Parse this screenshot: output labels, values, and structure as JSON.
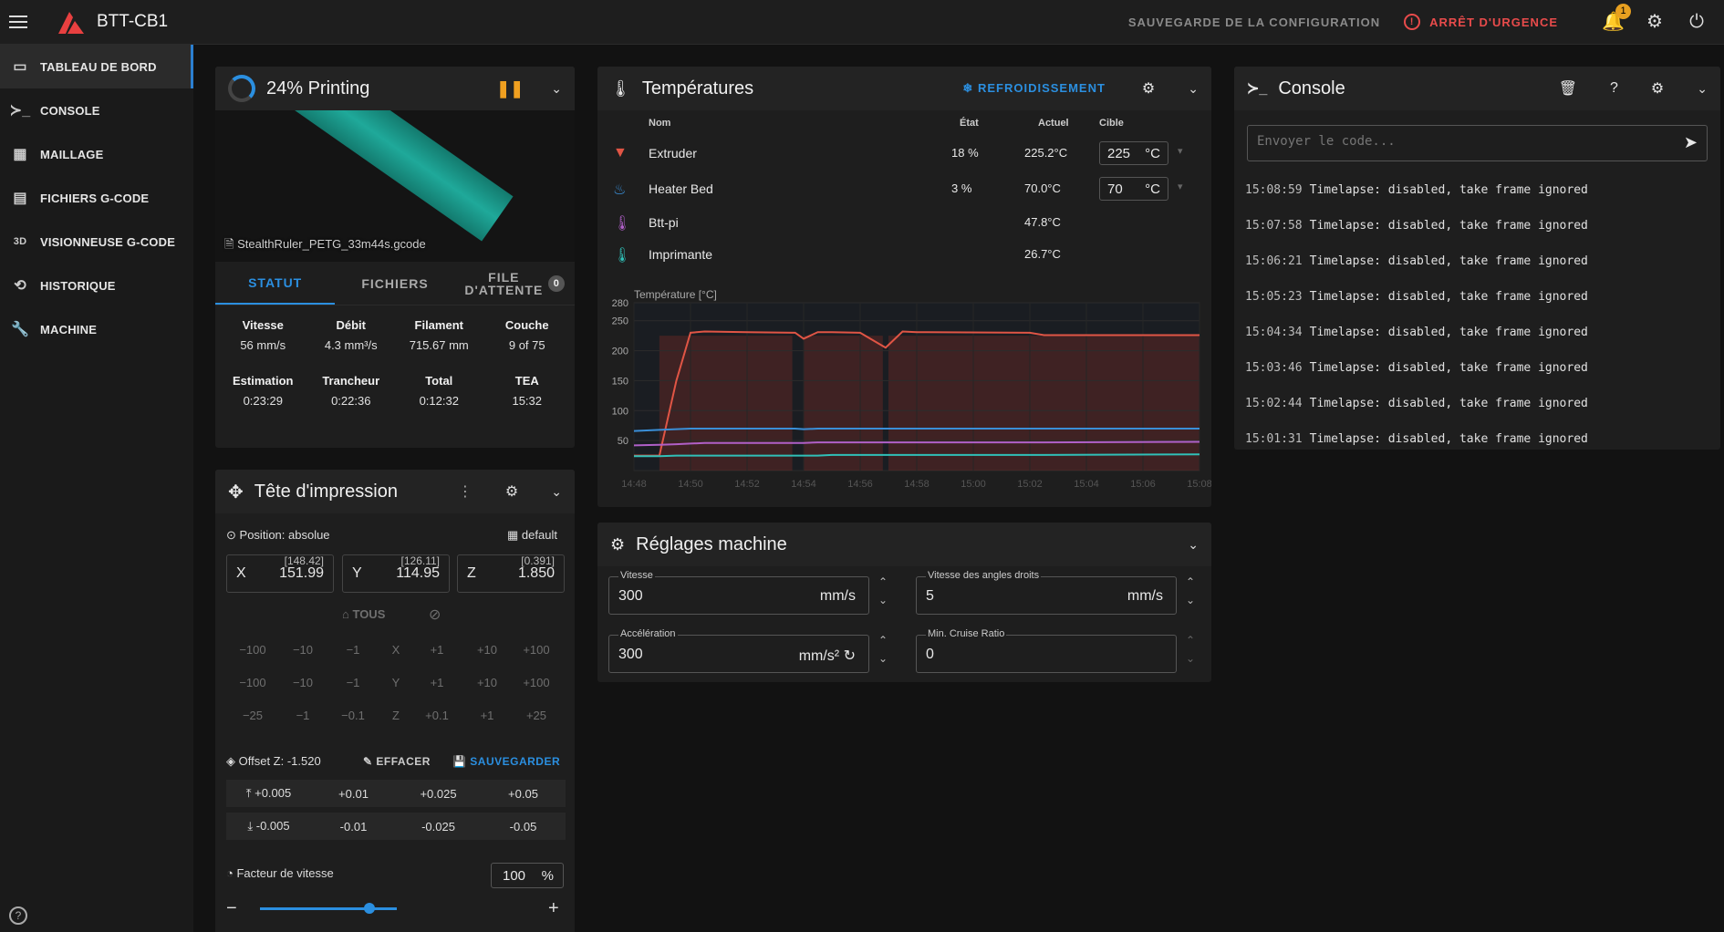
{
  "app": {
    "title": "BTT-CB1",
    "save_config": "SAUVEGARDE DE LA CONFIGURATION",
    "estop": "ARRÊT D'URGENCE",
    "notif_count": "1"
  },
  "sidebar": {
    "items": [
      {
        "label": "TABLEAU DE BORD",
        "icon": "monitor-dashboard-icon"
      },
      {
        "label": "CONSOLE",
        "icon": "console-icon"
      },
      {
        "label": "MAILLAGE",
        "icon": "grid-icon"
      },
      {
        "label": "FICHIERS G-CODE",
        "icon": "files-icon"
      },
      {
        "label": "VISIONNEUSE G-CODE",
        "icon": "3d-icon"
      },
      {
        "label": "HISTORIQUE",
        "icon": "history-icon"
      },
      {
        "label": "MACHINE",
        "icon": "wrench-icon"
      }
    ]
  },
  "status": {
    "title": "24% Printing",
    "progress": 24,
    "filename": "StealthRuler_PETG_33m44s.gcode",
    "tabs": [
      "STATUT",
      "FICHIERS",
      "FILE",
      "D'ATTENTE"
    ],
    "queue_count": "0",
    "stats": [
      {
        "label": "Vitesse",
        "value": "56 mm/s"
      },
      {
        "label": "Débit",
        "value": "4.3 mm³/s"
      },
      {
        "label": "Filament",
        "value": "715.67 mm"
      },
      {
        "label": "Couche",
        "value": "9 of 75"
      },
      {
        "label": "Estimation",
        "value": "0:23:29"
      },
      {
        "label": "Trancheur",
        "value": "0:22:36"
      },
      {
        "label": "Total",
        "value": "0:12:32"
      },
      {
        "label": "TEA",
        "value": "15:32"
      }
    ]
  },
  "toolhead": {
    "title": "Tête d'impression",
    "position": "Position: absolue",
    "default": "default",
    "axes": [
      {
        "label": "X",
        "value": "151.99",
        "bracket": "[148.42]"
      },
      {
        "label": "Y",
        "value": "114.95",
        "bracket": "[126.11]"
      },
      {
        "label": "Z",
        "value": "1.850",
        "bracket": "[0.391]"
      }
    ],
    "home": "TOUS",
    "jog_rows": [
      [
        "−100",
        "−10",
        "−1",
        "X",
        "+1",
        "+10",
        "+100"
      ],
      [
        "−100",
        "−10",
        "−1",
        "Y",
        "+1",
        "+10",
        "+100"
      ],
      [
        "−25",
        "−1",
        "−0.1",
        "Z",
        "+0.1",
        "+1",
        "+25"
      ]
    ],
    "offset": "Offset Z: -1.520",
    "clear": "EFFACER",
    "save": "SAUVEGARDER",
    "offset_up": [
      "+0.005",
      "+0.01",
      "+0.025",
      "+0.05"
    ],
    "offset_down": [
      "-0.005",
      "-0.01",
      "-0.025",
      "-0.05"
    ],
    "speed_label": "Facteur de vitesse",
    "speed_value": "100",
    "speed_unit": "%",
    "speed_fraction": 0.8
  },
  "temps": {
    "title": "Températures",
    "cooldown": "REFROIDISSEMENT",
    "headers": [
      "Nom",
      "État",
      "Actuel",
      "Cible"
    ],
    "rows": [
      {
        "name": "Extruder",
        "state": "18 %",
        "actual": "225.2°C",
        "target": "225",
        "unit": "°C",
        "color": "#e05545"
      },
      {
        "name": "Heater Bed",
        "state": "3 %",
        "actual": "70.0°C",
        "target": "70",
        "unit": "°C",
        "color": "#3a8fd8"
      },
      {
        "name": "Btt-pi",
        "state": "",
        "actual": "47.8°C",
        "color": "#b060c8"
      },
      {
        "name": "Imprimante",
        "state": "",
        "actual": "26.7°C",
        "color": "#30c0b8"
      }
    ],
    "chart_label": "Température [°C]"
  },
  "chart_data": {
    "type": "line",
    "ylabel": "Température [°C]",
    "ylim": [
      0,
      280
    ],
    "yticks": [
      50,
      100,
      150,
      200,
      250,
      280
    ],
    "xticks": [
      "14:48",
      "14:50",
      "14:52",
      "14:54",
      "14:56",
      "14:58",
      "15:00",
      "15:02",
      "15:04",
      "15:06",
      "15:08"
    ],
    "x": [
      0,
      0.9,
      1.5,
      2.0,
      2.5,
      4.0,
      5.7,
      6.0,
      6.5,
      7.0,
      8.0,
      8.9,
      9.5,
      10.0,
      14.0,
      14.5,
      20.0
    ],
    "series": [
      {
        "name": "Extruder",
        "color": "#e05545",
        "values": [
          25,
          25,
          150,
          230,
          232,
          231,
          230,
          220,
          231,
          231,
          230,
          205,
          232,
          231,
          230,
          226,
          226
        ]
      },
      {
        "name": "Heater Bed",
        "color": "#3a8fd8",
        "values": [
          66,
          68,
          69,
          70,
          70,
          70,
          70,
          69,
          70,
          70,
          70,
          70,
          70,
          70,
          70,
          70,
          70
        ]
      },
      {
        "name": "Btt-pi",
        "color": "#b060c8",
        "values": [
          42,
          43,
          44,
          45,
          46,
          46,
          46,
          46,
          47,
          47,
          47,
          47,
          47,
          47,
          47,
          47,
          48
        ]
      },
      {
        "name": "Imprimante",
        "color": "#30c0b8",
        "values": [
          24,
          24,
          25,
          25,
          25,
          25,
          25,
          25,
          25,
          26,
          26,
          26,
          26,
          26,
          26,
          26,
          27
        ]
      }
    ]
  },
  "machine": {
    "title": "Réglages machine",
    "fields": [
      {
        "label": "Vitesse",
        "value": "300",
        "unit": "mm/s"
      },
      {
        "label": "Vitesse des angles droits",
        "value": "5",
        "unit": "mm/s"
      },
      {
        "label": "Accélération",
        "value": "300",
        "unit": "mm/s²"
      },
      {
        "label": "Min. Cruise Ratio",
        "value": "0",
        "unit": ""
      }
    ]
  },
  "console": {
    "title": "Console",
    "placeholder": "Envoyer le code...",
    "lines": [
      {
        "time": "15:08:59",
        "text": "Timelapse: disabled, take frame ignored"
      },
      {
        "time": "15:07:58",
        "text": "Timelapse: disabled, take frame ignored"
      },
      {
        "time": "15:06:21",
        "text": "Timelapse: disabled, take frame ignored"
      },
      {
        "time": "15:05:23",
        "text": "Timelapse: disabled, take frame ignored"
      },
      {
        "time": "15:04:34",
        "text": "Timelapse: disabled, take frame ignored"
      },
      {
        "time": "15:03:46",
        "text": "Timelapse: disabled, take frame ignored"
      },
      {
        "time": "15:02:44",
        "text": "Timelapse: disabled, take frame ignored"
      },
      {
        "time": "15:01:31",
        "text": "Timelapse: disabled, take frame ignored"
      }
    ]
  }
}
